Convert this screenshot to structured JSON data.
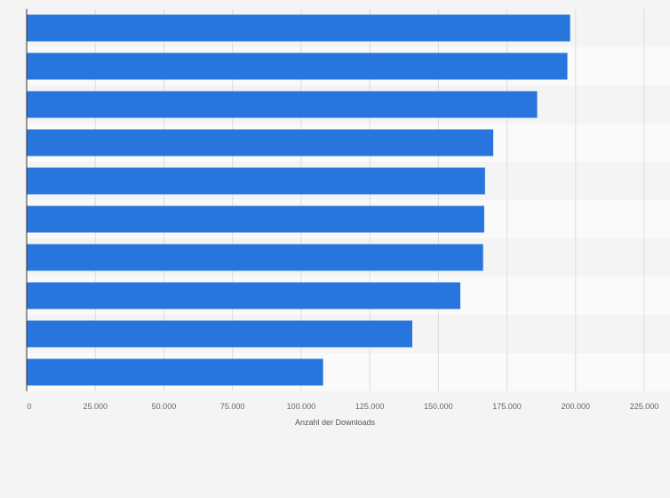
{
  "chart_data": {
    "type": "bar",
    "orientation": "horizontal",
    "categories": [
      "",
      "",
      "",
      "",
      "",
      "",
      "",
      "",
      "",
      ""
    ],
    "values": [
      198000,
      197000,
      186000,
      170000,
      167000,
      166700,
      166300,
      158000,
      140500,
      108000
    ],
    "xlabel": "Anzahl der Downloads",
    "ylabel": "",
    "xlim": [
      0,
      225000
    ],
    "x_ticks": [
      0,
      25000,
      50000,
      75000,
      100000,
      125000,
      150000,
      175000,
      200000,
      225000
    ],
    "x_tick_labels": [
      "0",
      "25.000",
      "50.000",
      "75.000",
      "100.000",
      "125.000",
      "150.000",
      "175.000",
      "200.000",
      "225.000"
    ],
    "grid": "vertical",
    "legend": "none",
    "colors": {
      "bar": "#2876dd",
      "background": "#f4f4f4",
      "band_light": "#fafafa",
      "band_dark": "#f4f4f4",
      "grid": "#dddddd",
      "axis": "#333333"
    }
  }
}
